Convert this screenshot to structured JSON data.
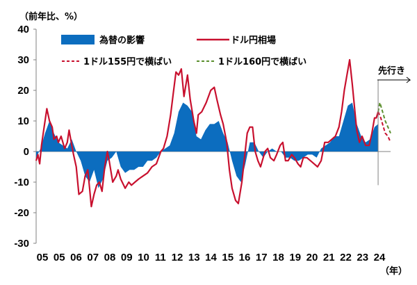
{
  "chart_data": {
    "type": "area",
    "ylabel": "（前年比、%）",
    "xlabel": "（年）",
    "ylim": [
      -30,
      40
    ],
    "yticks": [
      40,
      30,
      20,
      10,
      0,
      -10,
      -20,
      -30
    ],
    "xticks": [
      "05",
      "05",
      "06",
      "07",
      "08",
      "09",
      "10",
      "11",
      "12",
      "13",
      "14",
      "15",
      "16",
      "17",
      "18",
      "19",
      "20",
      "21",
      "22",
      "23",
      "24"
    ],
    "x_range": [
      2005,
      2024.9
    ],
    "future_label": "先行き",
    "legend": {
      "fx_effect": "為替の影響",
      "usdjpy": "ドル円相場",
      "s155": "1ドル155円で横ばい",
      "s160": "1ドル160円で横ばい"
    },
    "colors": {
      "fx_effect": "#0c6dbf",
      "usdjpy": "#c8102e",
      "s155": "#c8102e",
      "s160": "#5b8f2d",
      "axis": "#808080"
    },
    "series": [
      {
        "name": "為替の影響",
        "type": "area",
        "points": [
          [
            2005.0,
            -2
          ],
          [
            2005.25,
            1
          ],
          [
            2005.5,
            6
          ],
          [
            2005.75,
            10
          ],
          [
            2006.0,
            6
          ],
          [
            2006.25,
            3
          ],
          [
            2006.5,
            2
          ],
          [
            2006.75,
            1
          ],
          [
            2007.0,
            4
          ],
          [
            2007.25,
            0
          ],
          [
            2007.5,
            -3
          ],
          [
            2007.75,
            -8
          ],
          [
            2008.0,
            -10
          ],
          [
            2008.25,
            -6
          ],
          [
            2008.5,
            -12
          ],
          [
            2008.75,
            -9
          ],
          [
            2009.0,
            -3
          ],
          [
            2009.25,
            -2
          ],
          [
            2009.5,
            0
          ],
          [
            2009.75,
            -5
          ],
          [
            2010.0,
            -7
          ],
          [
            2010.25,
            -6
          ],
          [
            2010.5,
            -6
          ],
          [
            2010.75,
            -5
          ],
          [
            2011.0,
            -5
          ],
          [
            2011.25,
            -3
          ],
          [
            2011.5,
            -3
          ],
          [
            2011.75,
            -2
          ],
          [
            2012.0,
            0
          ],
          [
            2012.25,
            1
          ],
          [
            2012.5,
            2
          ],
          [
            2012.75,
            6
          ],
          [
            2013.0,
            13
          ],
          [
            2013.25,
            16
          ],
          [
            2013.5,
            15
          ],
          [
            2013.75,
            13
          ],
          [
            2014.0,
            5
          ],
          [
            2014.25,
            4
          ],
          [
            2014.5,
            7
          ],
          [
            2014.75,
            9
          ],
          [
            2015.0,
            9
          ],
          [
            2015.25,
            10
          ],
          [
            2015.5,
            6
          ],
          [
            2015.75,
            3
          ],
          [
            2016.0,
            -3
          ],
          [
            2016.25,
            -8
          ],
          [
            2016.5,
            -10
          ],
          [
            2016.75,
            -4
          ],
          [
            2017.0,
            3
          ],
          [
            2017.25,
            3
          ],
          [
            2017.5,
            0
          ],
          [
            2017.75,
            -2
          ],
          [
            2018.0,
            0
          ],
          [
            2018.25,
            1
          ],
          [
            2018.5,
            0
          ],
          [
            2018.75,
            0
          ],
          [
            2019.0,
            -2
          ],
          [
            2019.25,
            -2
          ],
          [
            2019.5,
            -3
          ],
          [
            2019.75,
            -3
          ],
          [
            2020.0,
            -2
          ],
          [
            2020.25,
            -1
          ],
          [
            2020.5,
            -1
          ],
          [
            2020.75,
            -2
          ],
          [
            2021.0,
            1
          ],
          [
            2021.25,
            2
          ],
          [
            2021.5,
            3
          ],
          [
            2021.75,
            5
          ],
          [
            2022.0,
            5
          ],
          [
            2022.25,
            10
          ],
          [
            2022.5,
            15
          ],
          [
            2022.75,
            16
          ],
          [
            2023.0,
            9
          ],
          [
            2023.25,
            5
          ],
          [
            2023.5,
            3
          ],
          [
            2023.75,
            4
          ],
          [
            2024.0,
            8
          ],
          [
            2024.2,
            9
          ]
        ]
      },
      {
        "name": "ドル円相場",
        "type": "line",
        "points": [
          [
            2005.0,
            -3
          ],
          [
            2005.1,
            -1
          ],
          [
            2005.2,
            -4
          ],
          [
            2005.3,
            2
          ],
          [
            2005.45,
            8
          ],
          [
            2005.6,
            14
          ],
          [
            2005.75,
            10
          ],
          [
            2005.9,
            8
          ],
          [
            2006.0,
            4
          ],
          [
            2006.15,
            5
          ],
          [
            2006.25,
            3
          ],
          [
            2006.4,
            5
          ],
          [
            2006.6,
            1
          ],
          [
            2006.75,
            3
          ],
          [
            2006.85,
            7
          ],
          [
            2007.0,
            2
          ],
          [
            2007.1,
            -1
          ],
          [
            2007.25,
            -5
          ],
          [
            2007.4,
            -14
          ],
          [
            2007.6,
            -13
          ],
          [
            2007.75,
            -8
          ],
          [
            2007.9,
            -6
          ],
          [
            2008.0,
            -12
          ],
          [
            2008.1,
            -18
          ],
          [
            2008.25,
            -14
          ],
          [
            2008.4,
            -11
          ],
          [
            2008.55,
            -10
          ],
          [
            2008.7,
            -13
          ],
          [
            2008.85,
            -5
          ],
          [
            2009.0,
            0
          ],
          [
            2009.1,
            -3
          ],
          [
            2009.3,
            -10
          ],
          [
            2009.5,
            -8
          ],
          [
            2009.6,
            -6
          ],
          [
            2009.75,
            -9
          ],
          [
            2010.0,
            -12
          ],
          [
            2010.2,
            -10
          ],
          [
            2010.35,
            -11
          ],
          [
            2010.55,
            -10
          ],
          [
            2010.75,
            -9
          ],
          [
            2011.0,
            -8
          ],
          [
            2011.25,
            -7
          ],
          [
            2011.5,
            -5
          ],
          [
            2011.75,
            -4
          ],
          [
            2012.0,
            0
          ],
          [
            2012.15,
            1
          ],
          [
            2012.35,
            5
          ],
          [
            2012.55,
            12
          ],
          [
            2012.7,
            19
          ],
          [
            2012.85,
            26
          ],
          [
            2013.0,
            25
          ],
          [
            2013.15,
            27
          ],
          [
            2013.3,
            18
          ],
          [
            2013.5,
            25
          ],
          [
            2013.65,
            17
          ],
          [
            2013.85,
            10
          ],
          [
            2014.0,
            6
          ],
          [
            2014.1,
            12
          ],
          [
            2014.3,
            13
          ],
          [
            2014.55,
            16
          ],
          [
            2014.8,
            20
          ],
          [
            2015.0,
            21
          ],
          [
            2015.15,
            17
          ],
          [
            2015.35,
            12
          ],
          [
            2015.5,
            9
          ],
          [
            2015.7,
            3
          ],
          [
            2015.85,
            -6
          ],
          [
            2016.0,
            -12
          ],
          [
            2016.2,
            -16
          ],
          [
            2016.35,
            -17
          ],
          [
            2016.55,
            -10
          ],
          [
            2016.7,
            -2
          ],
          [
            2016.85,
            6
          ],
          [
            2017.0,
            8
          ],
          [
            2017.15,
            8
          ],
          [
            2017.3,
            0
          ],
          [
            2017.45,
            -3
          ],
          [
            2017.6,
            -5
          ],
          [
            2017.85,
            0
          ],
          [
            2018.0,
            1
          ],
          [
            2018.15,
            -2
          ],
          [
            2018.35,
            -3
          ],
          [
            2018.5,
            -1
          ],
          [
            2018.7,
            2
          ],
          [
            2018.85,
            3
          ],
          [
            2019.0,
            -3
          ],
          [
            2019.15,
            -3
          ],
          [
            2019.35,
            -1
          ],
          [
            2019.5,
            -2
          ],
          [
            2019.7,
            -4
          ],
          [
            2019.85,
            -5
          ],
          [
            2020.0,
            -2
          ],
          [
            2020.2,
            -2
          ],
          [
            2020.4,
            -3
          ],
          [
            2020.6,
            -4
          ],
          [
            2020.8,
            -5
          ],
          [
            2021.0,
            -3
          ],
          [
            2021.2,
            3
          ],
          [
            2021.4,
            3
          ],
          [
            2021.6,
            4
          ],
          [
            2021.8,
            5
          ],
          [
            2022.0,
            8
          ],
          [
            2022.15,
            13
          ],
          [
            2022.3,
            20
          ],
          [
            2022.45,
            25
          ],
          [
            2022.6,
            30
          ],
          [
            2022.75,
            22
          ],
          [
            2022.9,
            13
          ],
          [
            2023.0,
            7
          ],
          [
            2023.15,
            3
          ],
          [
            2023.3,
            5
          ],
          [
            2023.5,
            2
          ],
          [
            2023.7,
            2
          ],
          [
            2023.85,
            6
          ],
          [
            2024.0,
            11
          ],
          [
            2024.1,
            11
          ],
          [
            2024.2,
            13
          ]
        ]
      },
      {
        "name": "1ドル155円で横ばい",
        "type": "dashed",
        "points": [
          [
            2024.2,
            13
          ],
          [
            2024.35,
            11
          ],
          [
            2024.5,
            8
          ],
          [
            2024.6,
            6
          ],
          [
            2024.75,
            5
          ],
          [
            2024.9,
            3
          ]
        ]
      },
      {
        "name": "1ドル160円で横ばい",
        "type": "dashed",
        "points": [
          [
            2024.2,
            13
          ],
          [
            2024.3,
            16
          ],
          [
            2024.45,
            13
          ],
          [
            2024.6,
            10
          ],
          [
            2024.75,
            8
          ],
          [
            2024.9,
            6
          ]
        ]
      }
    ]
  }
}
